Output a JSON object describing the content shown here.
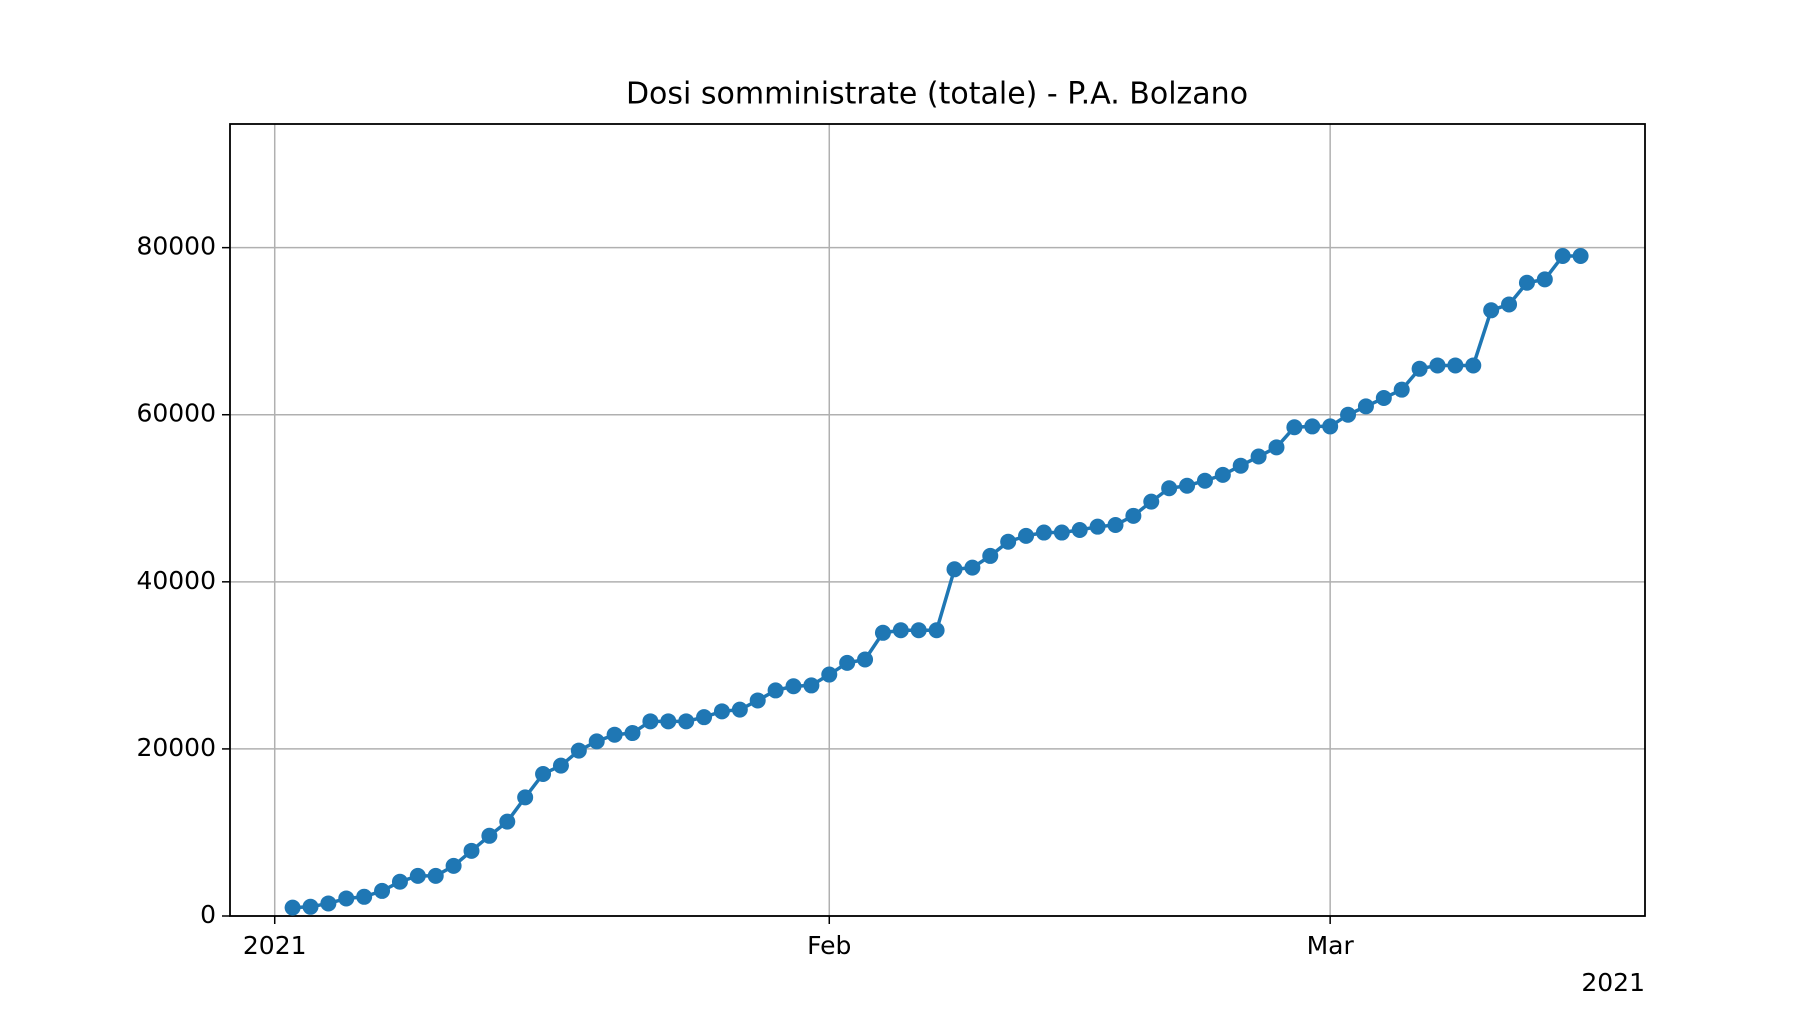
{
  "chart_data": {
    "type": "line",
    "title": "Dosi somministrate (totale) - P.A. Bolzano",
    "x": [
      1,
      2,
      3,
      4,
      5,
      6,
      7,
      8,
      9,
      10,
      11,
      12,
      13,
      14,
      15,
      16,
      17,
      18,
      19,
      20,
      21,
      22,
      23,
      24,
      25,
      26,
      27,
      28,
      29,
      30,
      31,
      32,
      33,
      34,
      35,
      36,
      37,
      38,
      39,
      40,
      41,
      42,
      43,
      44,
      45,
      46,
      47,
      48,
      49,
      50,
      51,
      52,
      53,
      54,
      55,
      56,
      57,
      58,
      59,
      60,
      61,
      62,
      63,
      64,
      65,
      66,
      67,
      68,
      69,
      70,
      71,
      72,
      73
    ],
    "series": [
      {
        "color": "#1f77b4",
        "values": [
          1000,
          1100,
          1500,
          2100,
          2300,
          3000,
          4100,
          4800,
          4800,
          6000,
          7800,
          9600,
          11300,
          14200,
          17000,
          18000,
          19800,
          20900,
          21700,
          21900,
          23300,
          23300,
          23300,
          23800,
          24500,
          24700,
          25800,
          27000,
          27500,
          27600,
          28900,
          30300,
          30700,
          33900,
          34200,
          34200,
          34200,
          41500,
          41700,
          43100,
          44800,
          45500,
          45900,
          45900,
          46200,
          46600,
          46800,
          47900,
          49600,
          51200,
          51500,
          52100,
          52800,
          53900,
          55000,
          56100,
          58500,
          58600,
          58600,
          60000,
          61000,
          62000,
          63000,
          65500,
          65900,
          65900,
          65900,
          72500,
          73200,
          75800,
          76200,
          79000,
          79000
        ]
      }
    ],
    "xlim": [
      -2.5,
      76.6
    ],
    "xticks": [
      {
        "value": 0,
        "label": "2021"
      },
      {
        "value": 31,
        "label": "Feb"
      },
      {
        "value": 59,
        "label": "Mar"
      }
    ],
    "x_offset_label": "2021",
    "ylim": [
      0,
      94800
    ],
    "yticks": [
      0,
      20000,
      40000,
      60000,
      80000
    ],
    "grid": true
  }
}
